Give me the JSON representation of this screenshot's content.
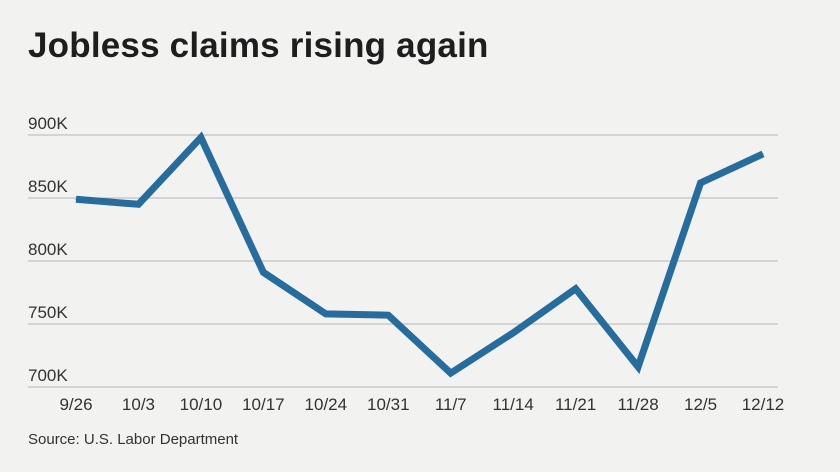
{
  "title": "Jobless claims rising again",
  "source": "Source: U.S. Labor Department",
  "colors": {
    "line": "#266c9d",
    "grid": "#b7b7b7",
    "background": "#f2f2f0"
  },
  "chart_data": {
    "type": "line",
    "title": "Jobless claims rising again",
    "xlabel": "",
    "ylabel": "",
    "categories": [
      "9/26",
      "10/3",
      "10/10",
      "10/17",
      "10/24",
      "10/31",
      "11/7",
      "11/14",
      "11/21",
      "11/28",
      "12/5",
      "12/12"
    ],
    "series": [
      {
        "values": [
          849,
          845,
          898,
          791,
          758,
          757,
          711,
          743,
          778,
          716,
          862,
          885
        ]
      }
    ],
    "y_ticks": [
      {
        "value": 700,
        "label": "700K"
      },
      {
        "value": 750,
        "label": "750K"
      },
      {
        "value": 800,
        "label": "800K"
      },
      {
        "value": 850,
        "label": "850K"
      },
      {
        "value": 900,
        "label": "900K"
      }
    ],
    "ylim": [
      700,
      900
    ],
    "grid": true,
    "legend": "none"
  }
}
